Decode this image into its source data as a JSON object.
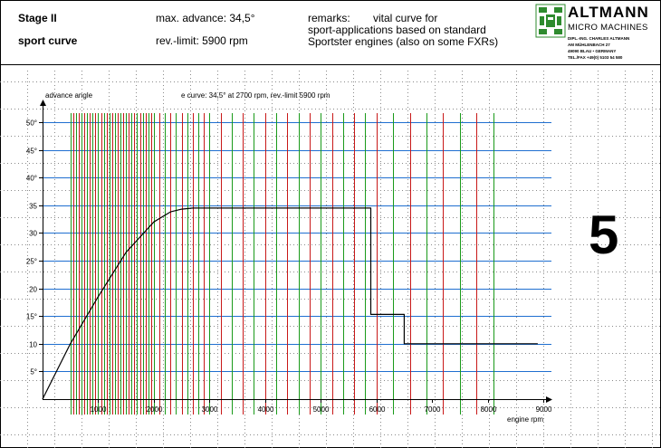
{
  "header": {
    "stage": "Stage II",
    "curve_name": "sport curve",
    "max_advance": "max. advance: 34,5°",
    "rev_limit": "rev.-limit:  5900 rpm",
    "remarks_label": "remarks:",
    "remarks_line1": "vital curve for",
    "remarks_line2": "sport-applications based on standard",
    "remarks_line3": "Sportster engines (also on some FXRs)"
  },
  "logo": {
    "name": "ALTMANN",
    "subtitle": "MICRO MACHINES",
    "address_lines": [
      "DIPL.-ING. CHARLES ALTMANN",
      "AM MÜHLENBACH 27",
      "49090 BLAU • GERMANY",
      "TEL./FAX +49(0) 5103 54 580"
    ]
  },
  "page_number": "5",
  "colors": {
    "blue_grid": "#1f6fd0",
    "green_grid": "#1a9a1a",
    "red_grid": "#c81818",
    "curve": "#000000",
    "dots": "#8a8a8a"
  },
  "chart_data": {
    "type": "line",
    "title": "e curve: 34,5° at 2700 rpm, rev.-limit 5900 rpm",
    "ylabel": "advance angle",
    "xlabel": "engine rpm",
    "xlim": [
      0,
      9000
    ],
    "ylim": [
      0,
      50
    ],
    "x_ticks": [
      1000,
      2000,
      3000,
      4000,
      5000,
      6000,
      7000,
      8000,
      9000
    ],
    "y_ticks": [
      5,
      10,
      15,
      20,
      25,
      30,
      35,
      40,
      45,
      50
    ],
    "y_tick_labels": [
      "5°",
      "10",
      "15°",
      "20",
      "25°",
      "30",
      "35",
      "40°",
      "45°",
      "50°"
    ],
    "series": [
      {
        "x": [
          0,
          500,
          1000,
          1500,
          2000,
          2300,
          2500,
          2700,
          5900,
          5900,
          6500,
          6500,
          8900
        ],
        "y": [
          0,
          10,
          18.5,
          26.5,
          32,
          33.8,
          34.3,
          34.5,
          34.5,
          15.3,
          15.3,
          10,
          10
        ]
      }
    ],
    "grid_rpm_lines": [
      500,
      550,
      600,
      650,
      700,
      750,
      800,
      850,
      900,
      950,
      1000,
      1050,
      1100,
      1150,
      1200,
      1250,
      1300,
      1350,
      1400,
      1450,
      1500,
      1550,
      1600,
      1650,
      1700,
      1750,
      1800,
      1850,
      1900,
      1950,
      2000,
      2100,
      2200,
      2300,
      2400,
      2500,
      2600,
      2700,
      2800,
      2900,
      3000,
      3200,
      3400,
      3600,
      3800,
      4000,
      4200,
      4400,
      4600,
      4800,
      5000,
      5200,
      5400,
      5600,
      5800,
      6000,
      6300,
      6600,
      6900,
      7200,
      7500,
      7800,
      8100
    ]
  }
}
